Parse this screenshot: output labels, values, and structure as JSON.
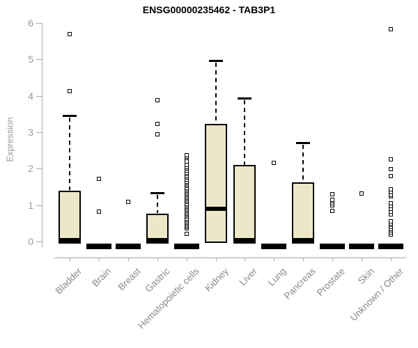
{
  "chart_data": {
    "type": "boxplot",
    "title": "ENSG00000235462 - TAB3P1",
    "ylabel": "Expression",
    "xlabel": "",
    "ylim": [
      0,
      6
    ],
    "y_ticks": [
      0,
      1,
      2,
      3,
      4,
      5,
      6
    ],
    "grid": "off",
    "legend": "none",
    "colors": {
      "box_fill": "#EDE7C9",
      "box_border": "#000000",
      "axis": "#A8A8A8",
      "tick_label": "#999999",
      "category_label": "#8A8A8A",
      "title": "#000000"
    },
    "categories": [
      "Bladder",
      "Brain",
      "Breast",
      "Gastric",
      "Hematopoietic cells",
      "Kidney",
      "Liver",
      "Lung",
      "Pancreas",
      "Prostate",
      "Skin",
      "Unknown / Other"
    ],
    "boxes": [
      {
        "label": "Bladder",
        "q1": 0,
        "median": 0.03,
        "q3": 1.4,
        "whisker_low": 0,
        "whisker_high": 3.45,
        "outliers": [
          4.12,
          5.7
        ]
      },
      {
        "label": "Brain",
        "q1": 0,
        "median": 0,
        "q3": 0,
        "whisker_low": 0,
        "whisker_high": 0,
        "outliers": [
          0.82,
          1.72
        ]
      },
      {
        "label": "Breast",
        "q1": 0,
        "median": 0,
        "q3": 0,
        "whisker_low": 0,
        "whisker_high": 0,
        "outliers": [
          1.08
        ]
      },
      {
        "label": "Gastric",
        "q1": 0,
        "median": 0.04,
        "q3": 0.77,
        "whisker_low": 0,
        "whisker_high": 1.33,
        "outliers": [
          2.95,
          3.23,
          3.88
        ]
      },
      {
        "label": "Hematopoietic cells",
        "q1": 0,
        "median": 0,
        "q3": 0,
        "whisker_low": 0,
        "whisker_high": 0,
        "outliers": [
          0.21,
          0.36,
          0.4,
          0.44,
          0.48,
          0.52,
          0.56,
          0.6,
          0.64,
          0.68,
          0.72,
          0.76,
          0.8,
          0.84,
          0.88,
          0.92,
          0.96,
          1.0,
          1.04,
          1.08,
          1.12,
          1.16,
          1.2,
          1.24,
          1.28,
          1.32,
          1.36,
          1.4,
          1.44,
          1.48,
          1.52,
          1.56,
          1.6,
          1.65,
          1.7,
          1.75,
          1.8,
          1.85,
          1.9,
          1.95,
          2.0,
          2.05,
          2.1,
          2.2,
          2.29,
          2.33,
          2.37
        ]
      },
      {
        "label": "Kidney",
        "q1": 0.02,
        "median": 0.9,
        "q3": 3.23,
        "whisker_low": 0,
        "whisker_high": 4.97,
        "outliers": []
      },
      {
        "label": "Liver",
        "q1": 0,
        "median": 0.04,
        "q3": 2.1,
        "whisker_low": 0,
        "whisker_high": 3.93,
        "outliers": []
      },
      {
        "label": "Lung",
        "q1": 0,
        "median": 0,
        "q3": 0,
        "whisker_low": 0,
        "whisker_high": 0,
        "outliers": [
          2.15
        ]
      },
      {
        "label": "Pancreas",
        "q1": 0,
        "median": 0.03,
        "q3": 1.63,
        "whisker_low": 0,
        "whisker_high": 2.72,
        "outliers": []
      },
      {
        "label": "Prostate",
        "q1": 0,
        "median": 0,
        "q3": 0,
        "whisker_low": 0,
        "whisker_high": 0,
        "outliers": [
          0.85,
          1.0,
          1.05,
          1.1,
          1.15,
          1.3
        ]
      },
      {
        "label": "Skin",
        "q1": 0,
        "median": 0,
        "q3": 0,
        "whisker_low": 0,
        "whisker_high": 0,
        "outliers": [
          1.32
        ]
      },
      {
        "label": "Unknown / Other",
        "q1": 0,
        "median": 0,
        "q3": 0,
        "whisker_low": 0,
        "whisker_high": 0,
        "outliers": [
          0.19,
          0.25,
          0.3,
          0.35,
          0.4,
          0.45,
          0.5,
          0.55,
          0.75,
          0.82,
          0.9,
          0.97,
          1.05,
          1.24,
          1.28,
          1.35,
          1.43,
          1.8,
          1.99,
          2.26,
          5.83
        ]
      }
    ]
  }
}
